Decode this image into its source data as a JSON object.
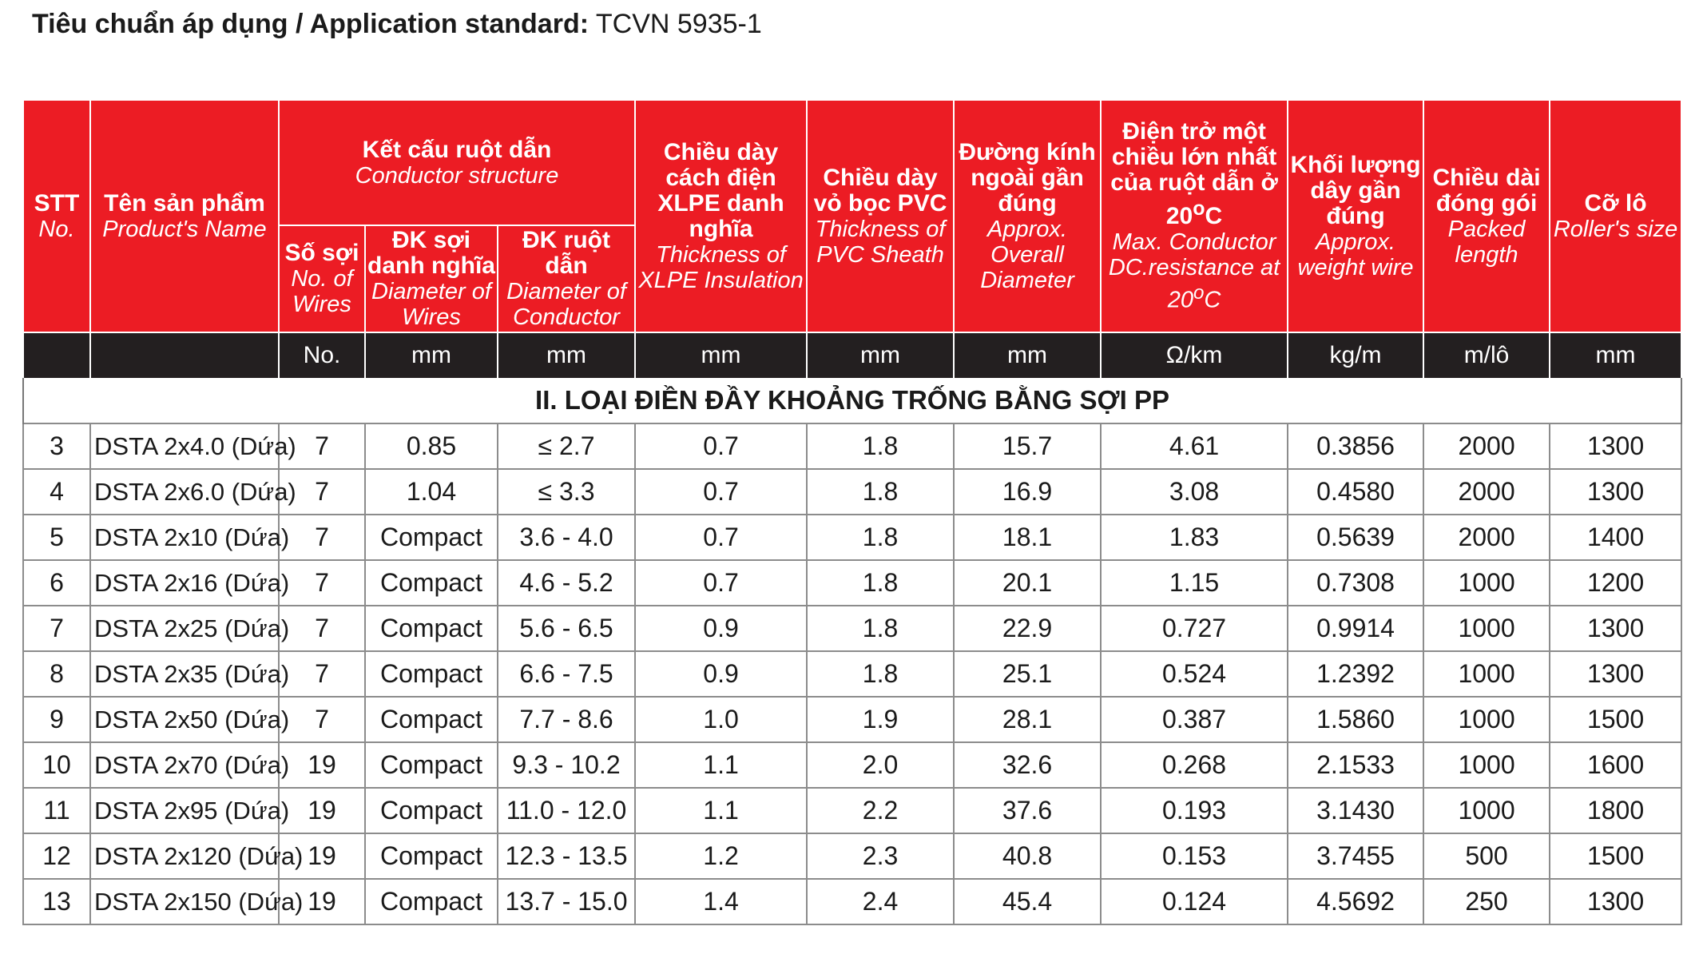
{
  "standard": {
    "label": "Tiêu chuẩn áp dụng / Application standard:",
    "value": "TCVN 5935-1"
  },
  "header": {
    "stt": {
      "vi": "STT",
      "en": "No."
    },
    "name": {
      "vi": "Tên sản phẩm",
      "en": "Product's Name"
    },
    "structure": {
      "vi": "Kết cấu ruột dẫn",
      "en": "Conductor structure"
    },
    "wires": {
      "vi": "Số sợi",
      "en": "No. of Wires"
    },
    "wire_dia": {
      "vi": "ĐK sợi danh nghĩa",
      "en": "Diameter of Wires"
    },
    "cond_dia": {
      "vi": "ĐK ruột dẫn",
      "en": "Diameter of Conductor"
    },
    "xlpe": {
      "vi": "Chiều dày cách điện XLPE danh nghĩa",
      "en": "Thickness of XLPE Insulation"
    },
    "pvc": {
      "vi": "Chiều dày vỏ bọc PVC",
      "en": "Thickness of PVC Sheath"
    },
    "overall": {
      "vi": "Đường kính ngoài gần đúng",
      "en": "Approx. Overall Diameter"
    },
    "resistance": {
      "vi1": "Điện trở một chiều lớn nhất của ruột dẫn ở 20",
      "sup_vi": "o",
      "vi2": "C",
      "en1": "Max. Conductor DC.resistance at 20",
      "sup_en": "o",
      "en2": "C"
    },
    "weight": {
      "vi": "Khối lượng dây gần đúng",
      "en": "Approx. weight wire"
    },
    "length": {
      "vi": "Chiều dài đóng gói",
      "en": "Packed length"
    },
    "roller": {
      "vi": "Cỡ lô",
      "en": "Roller's size"
    }
  },
  "units": [
    "",
    "",
    "No.",
    "mm",
    "mm",
    "mm",
    "mm",
    "mm",
    "Ω/km",
    "kg/m",
    "m/lô",
    "mm"
  ],
  "section_title": "II. LOẠI ĐIỀN ĐẦY KHOẢNG TRỐNG BẰNG SỢI PP",
  "rows": [
    [
      "3",
      "DSTA 2x4.0 (Dứa)",
      "7",
      "0.85",
      "≤ 2.7",
      "0.7",
      "1.8",
      "15.7",
      "4.61",
      "0.3856",
      "2000",
      "1300"
    ],
    [
      "4",
      "DSTA 2x6.0 (Dứa)",
      "7",
      "1.04",
      "≤ 3.3",
      "0.7",
      "1.8",
      "16.9",
      "3.08",
      "0.4580",
      "2000",
      "1300"
    ],
    [
      "5",
      "DSTA 2x10 (Dứa)",
      "7",
      "Compact",
      "3.6 - 4.0",
      "0.7",
      "1.8",
      "18.1",
      "1.83",
      "0.5639",
      "2000",
      "1400"
    ],
    [
      "6",
      "DSTA 2x16 (Dứa)",
      "7",
      "Compact",
      "4.6 - 5.2",
      "0.7",
      "1.8",
      "20.1",
      "1.15",
      "0.7308",
      "1000",
      "1200"
    ],
    [
      "7",
      "DSTA 2x25 (Dứa)",
      "7",
      "Compact",
      "5.6 - 6.5",
      "0.9",
      "1.8",
      "22.9",
      "0.727",
      "0.9914",
      "1000",
      "1300"
    ],
    [
      "8",
      "DSTA 2x35 (Dứa)",
      "7",
      "Compact",
      "6.6 - 7.5",
      "0.9",
      "1.8",
      "25.1",
      "0.524",
      "1.2392",
      "1000",
      "1300"
    ],
    [
      "9",
      "DSTA 2x50 (Dứa)",
      "7",
      "Compact",
      "7.7 - 8.6",
      "1.0",
      "1.9",
      "28.1",
      "0.387",
      "1.5860",
      "1000",
      "1500"
    ],
    [
      "10",
      "DSTA 2x70 (Dứa)",
      "19",
      "Compact",
      "9.3 - 10.2",
      "1.1",
      "2.0",
      "32.6",
      "0.268",
      "2.1533",
      "1000",
      "1600"
    ],
    [
      "11",
      "DSTA 2x95 (Dứa)",
      "19",
      "Compact",
      "11.0 - 12.0",
      "1.1",
      "2.2",
      "37.6",
      "0.193",
      "3.1430",
      "1000",
      "1800"
    ],
    [
      "12",
      "DSTA 2x120 (Dứa)",
      "19",
      "Compact",
      "12.3 - 13.5",
      "1.2",
      "2.3",
      "40.8",
      "0.153",
      "3.7455",
      "500",
      "1500"
    ],
    [
      "13",
      "DSTA 2x150 (Dứa)",
      "19",
      "Compact",
      "13.7 - 15.0",
      "1.4",
      "2.4",
      "45.4",
      "0.124",
      "4.5692",
      "250",
      "1300"
    ]
  ]
}
